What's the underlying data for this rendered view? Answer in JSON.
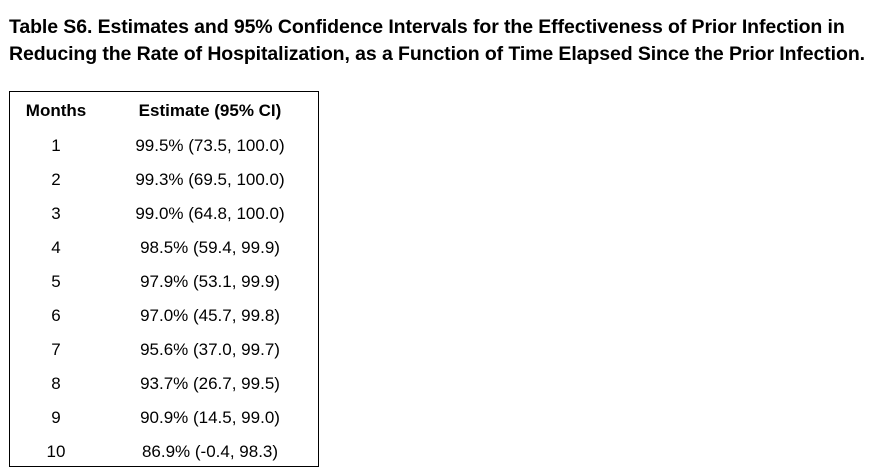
{
  "title": {
    "line1": "Table S6. Estimates and 95% Confidence Intervals for the Effectiveness of Prior Infection in",
    "line2": "Reducing the Rate of Hospitalization, as a Function of Time Elapsed Since the Prior Infection."
  },
  "table": {
    "headers": [
      "Months",
      "Estimate (95% CI)"
    ],
    "rows": [
      [
        "1",
        "99.5% (73.5, 100.0)"
      ],
      [
        "2",
        "99.3% (69.5, 100.0)"
      ],
      [
        "3",
        "99.0% (64.8, 100.0)"
      ],
      [
        "4",
        "98.5% (59.4, 99.9)"
      ],
      [
        "5",
        "97.9% (53.1, 99.9)"
      ],
      [
        "6",
        "97.0% (45.7, 99.8)"
      ],
      [
        "7",
        "95.6% (37.0, 99.7)"
      ],
      [
        "8",
        "93.7% (26.7, 99.5)"
      ],
      [
        "9",
        "90.9% (14.5, 99.0)"
      ],
      [
        "10",
        "86.9% (-0.4, 98.3)"
      ]
    ]
  }
}
